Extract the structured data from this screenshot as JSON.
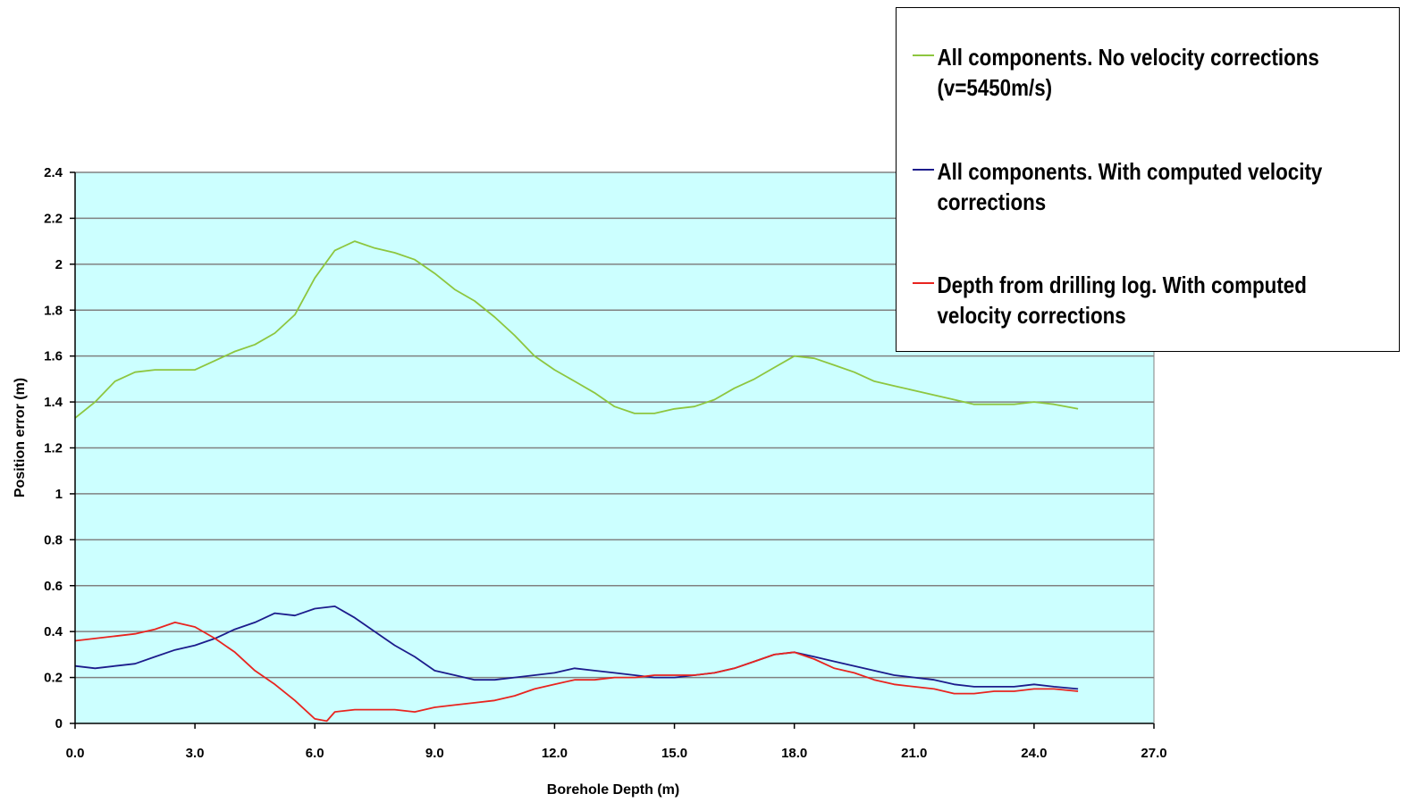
{
  "chart_data": {
    "type": "line",
    "xlabel": "Borehole Depth (m)",
    "ylabel": "Position error (m)",
    "xlim": [
      0,
      27
    ],
    "ylim": [
      0,
      2.4
    ],
    "x_ticks": [
      "0.0",
      "3.0",
      "6.0",
      "9.0",
      "12.0",
      "15.0",
      "18.0",
      "21.0",
      "24.0",
      "27.0"
    ],
    "y_ticks": [
      "0",
      "0.2",
      "0.4",
      "0.6",
      "0.8",
      "1",
      "1.2",
      "1.4",
      "1.6",
      "1.8",
      "2",
      "2.2",
      "2.4"
    ],
    "grid": "horizontal",
    "legend_position": "top-right",
    "series": [
      {
        "name": "All components.  No velocity corrections (v=5450m/s)",
        "color": "#8dc63f",
        "points": [
          [
            0,
            1.33
          ],
          [
            0.5,
            1.4
          ],
          [
            1.0,
            1.49
          ],
          [
            1.5,
            1.53
          ],
          [
            2.0,
            1.54
          ],
          [
            2.5,
            1.54
          ],
          [
            3.0,
            1.54
          ],
          [
            3.5,
            1.58
          ],
          [
            4.0,
            1.62
          ],
          [
            4.5,
            1.65
          ],
          [
            5.0,
            1.7
          ],
          [
            5.5,
            1.78
          ],
          [
            6.0,
            1.94
          ],
          [
            6.5,
            2.06
          ],
          [
            7.0,
            2.1
          ],
          [
            7.5,
            2.07
          ],
          [
            8.0,
            2.05
          ],
          [
            8.5,
            2.02
          ],
          [
            9.0,
            1.96
          ],
          [
            9.5,
            1.89
          ],
          [
            10.0,
            1.84
          ],
          [
            10.5,
            1.77
          ],
          [
            11.0,
            1.69
          ],
          [
            11.5,
            1.6
          ],
          [
            12.0,
            1.54
          ],
          [
            12.5,
            1.49
          ],
          [
            13.0,
            1.44
          ],
          [
            13.5,
            1.38
          ],
          [
            14.0,
            1.35
          ],
          [
            14.5,
            1.35
          ],
          [
            15.0,
            1.37
          ],
          [
            15.5,
            1.38
          ],
          [
            16.0,
            1.41
          ],
          [
            16.5,
            1.46
          ],
          [
            17.0,
            1.5
          ],
          [
            17.5,
            1.55
          ],
          [
            18.0,
            1.6
          ],
          [
            18.5,
            1.59
          ],
          [
            19.0,
            1.56
          ],
          [
            19.5,
            1.53
          ],
          [
            20.0,
            1.49
          ],
          [
            20.5,
            1.47
          ],
          [
            21.0,
            1.45
          ],
          [
            21.5,
            1.43
          ],
          [
            22.0,
            1.41
          ],
          [
            22.5,
            1.39
          ],
          [
            23.0,
            1.39
          ],
          [
            23.5,
            1.39
          ],
          [
            24.0,
            1.4
          ],
          [
            24.5,
            1.39
          ],
          [
            25.1,
            1.37
          ]
        ]
      },
      {
        "name": "All components.  With computed velocity corrections",
        "color": "#1c1c8c",
        "points": [
          [
            0,
            0.25
          ],
          [
            0.5,
            0.24
          ],
          [
            1.0,
            0.25
          ],
          [
            1.5,
            0.26
          ],
          [
            2.0,
            0.29
          ],
          [
            2.5,
            0.32
          ],
          [
            3.0,
            0.34
          ],
          [
            3.5,
            0.37
          ],
          [
            4.0,
            0.41
          ],
          [
            4.5,
            0.44
          ],
          [
            5.0,
            0.48
          ],
          [
            5.5,
            0.47
          ],
          [
            6.0,
            0.5
          ],
          [
            6.5,
            0.51
          ],
          [
            7.0,
            0.46
          ],
          [
            7.5,
            0.4
          ],
          [
            8.0,
            0.34
          ],
          [
            8.5,
            0.29
          ],
          [
            9.0,
            0.23
          ],
          [
            9.5,
            0.21
          ],
          [
            10.0,
            0.19
          ],
          [
            10.5,
            0.19
          ],
          [
            11.0,
            0.2
          ],
          [
            11.5,
            0.21
          ],
          [
            12.0,
            0.22
          ],
          [
            12.5,
            0.24
          ],
          [
            13.0,
            0.23
          ],
          [
            13.5,
            0.22
          ],
          [
            14.0,
            0.21
          ],
          [
            14.5,
            0.2
          ],
          [
            15.0,
            0.2
          ],
          [
            15.5,
            0.21
          ],
          [
            16.0,
            0.22
          ],
          [
            16.5,
            0.24
          ],
          [
            17.0,
            0.27
          ],
          [
            17.5,
            0.3
          ],
          [
            18.0,
            0.31
          ],
          [
            18.5,
            0.29
          ],
          [
            19.0,
            0.27
          ],
          [
            19.5,
            0.25
          ],
          [
            20.0,
            0.23
          ],
          [
            20.5,
            0.21
          ],
          [
            21.0,
            0.2
          ],
          [
            21.5,
            0.19
          ],
          [
            22.0,
            0.17
          ],
          [
            22.5,
            0.16
          ],
          [
            23.0,
            0.16
          ],
          [
            23.5,
            0.16
          ],
          [
            24.0,
            0.17
          ],
          [
            24.5,
            0.16
          ],
          [
            25.1,
            0.15
          ]
        ]
      },
      {
        "name": "Depth from drilling log.  With computed velocity corrections",
        "color": "#e8241f",
        "points": [
          [
            0,
            0.36
          ],
          [
            0.5,
            0.37
          ],
          [
            1.0,
            0.38
          ],
          [
            1.5,
            0.39
          ],
          [
            2.0,
            0.41
          ],
          [
            2.5,
            0.44
          ],
          [
            3.0,
            0.42
          ],
          [
            3.5,
            0.37
          ],
          [
            4.0,
            0.31
          ],
          [
            4.5,
            0.23
          ],
          [
            5.0,
            0.17
          ],
          [
            5.5,
            0.1
          ],
          [
            6.0,
            0.02
          ],
          [
            6.3,
            0.01
          ],
          [
            6.5,
            0.05
          ],
          [
            7.0,
            0.06
          ],
          [
            7.5,
            0.06
          ],
          [
            8.0,
            0.06
          ],
          [
            8.5,
            0.05
          ],
          [
            9.0,
            0.07
          ],
          [
            9.5,
            0.08
          ],
          [
            10.0,
            0.09
          ],
          [
            10.5,
            0.1
          ],
          [
            11.0,
            0.12
          ],
          [
            11.5,
            0.15
          ],
          [
            12.0,
            0.17
          ],
          [
            12.5,
            0.19
          ],
          [
            13.0,
            0.19
          ],
          [
            13.5,
            0.2
          ],
          [
            14.0,
            0.2
          ],
          [
            14.5,
            0.21
          ],
          [
            15.0,
            0.21
          ],
          [
            15.5,
            0.21
          ],
          [
            16.0,
            0.22
          ],
          [
            16.5,
            0.24
          ],
          [
            17.0,
            0.27
          ],
          [
            17.5,
            0.3
          ],
          [
            18.0,
            0.31
          ],
          [
            18.5,
            0.28
          ],
          [
            19.0,
            0.24
          ],
          [
            19.5,
            0.22
          ],
          [
            20.0,
            0.19
          ],
          [
            20.5,
            0.17
          ],
          [
            21.0,
            0.16
          ],
          [
            21.5,
            0.15
          ],
          [
            22.0,
            0.13
          ],
          [
            22.5,
            0.13
          ],
          [
            23.0,
            0.14
          ],
          [
            23.5,
            0.14
          ],
          [
            24.0,
            0.15
          ],
          [
            24.5,
            0.15
          ],
          [
            25.1,
            0.14
          ]
        ]
      }
    ]
  },
  "legend": {
    "items": [
      {
        "line1": "All components.  No velocity corrections",
        "line2": "(v=5450m/s)",
        "color": "#8dc63f"
      },
      {
        "line1": "All components.  With computed velocity",
        "line2": "corrections",
        "color": "#1c1c8c"
      },
      {
        "line1": "Depth from drilling log.  With computed",
        "line2": "velocity corrections",
        "color": "#e8241f"
      }
    ]
  }
}
